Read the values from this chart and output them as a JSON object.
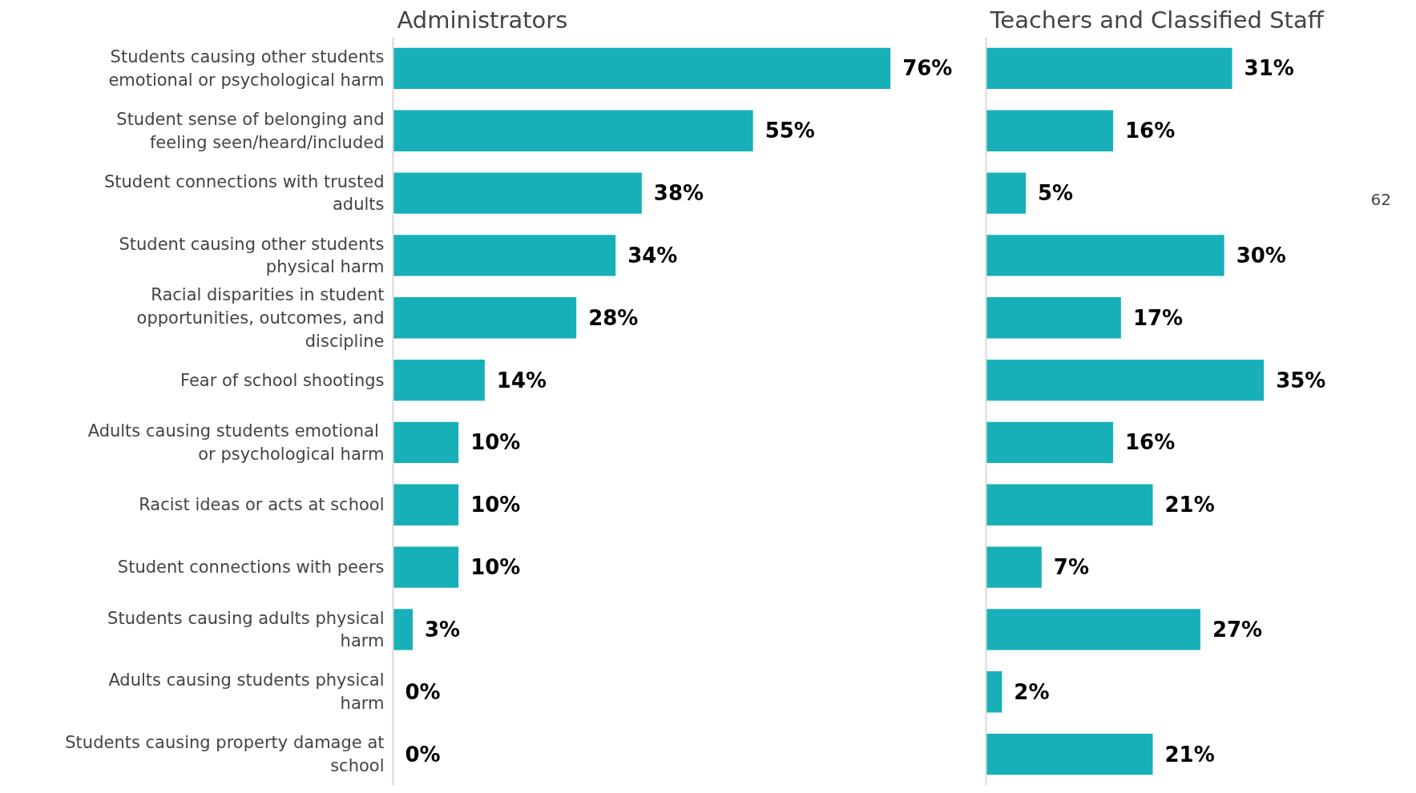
{
  "chart_data": [
    {
      "type": "bar",
      "orientation": "horizontal",
      "title": "Administrators",
      "categories": [
        "Students causing other students emotional or psychological harm",
        "Student sense of belonging and feeling seen/heard/included",
        "Student connections with trusted adults",
        "Student causing other students physical harm",
        "Racial disparities in student opportunities, outcomes, and discipline",
        "Fear of school shootings",
        "Adults causing students  emotional or psychological harm",
        "Racist ideas or acts at school",
        "Student connections with peers",
        "Students causing adults physical harm",
        "Adults causing students physical harm",
        "Students causing property damage at school"
      ],
      "values": [
        76,
        55,
        38,
        34,
        28,
        14,
        10,
        10,
        10,
        3,
        0,
        0
      ],
      "value_labels": [
        "76%",
        "55%",
        "38%",
        "34%",
        "28%",
        "14%",
        "10%",
        "10%",
        "10%",
        "3%",
        "0%",
        "0%"
      ],
      "color": "#17b0b9",
      "tick_labels": "y"
    },
    {
      "type": "bar",
      "orientation": "horizontal",
      "title": "Teachers and Classified Staff",
      "categories": [
        "Students causing other students emotional or psychological harm",
        "Student sense of belonging and feeling seen/heard/included",
        "Student connections with trusted adults",
        "Student causing other students physical harm",
        "Racial disparities in student opportunities, outcomes, and discipline",
        "Fear of school shootings",
        "Adults causing students  emotional or psychological harm",
        "Racist ideas or acts at school",
        "Student connections with peers",
        "Students causing adults physical harm",
        "Adults causing students physical harm",
        "Students causing property damage at school"
      ],
      "values": [
        31,
        16,
        5,
        30,
        17,
        35,
        16,
        21,
        7,
        27,
        2,
        21
      ],
      "value_labels": [
        "31%",
        "16%",
        "5%",
        "30%",
        "17%",
        "35%",
        "16%",
        "21%",
        "7%",
        "27%",
        "2%",
        "21%"
      ],
      "color": "#17b0b9",
      "tick_labels": false,
      "annotations": [
        "62"
      ]
    }
  ]
}
